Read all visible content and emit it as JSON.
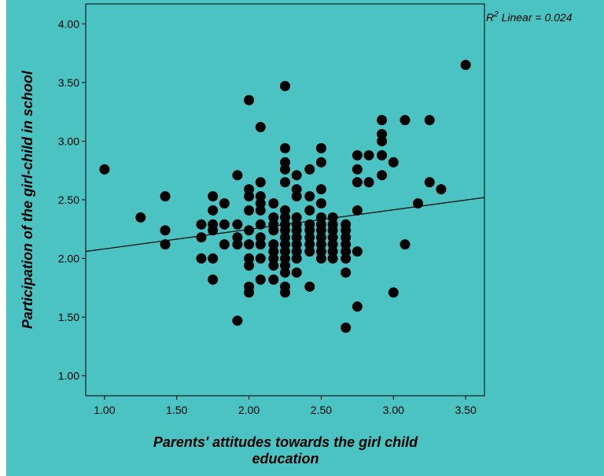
{
  "colors": {
    "background": "#4bc3c3",
    "point": "#000000",
    "line": "#000000"
  },
  "chart_data": {
    "type": "scatter",
    "title": "",
    "xlabel_line1": "Parents' attitudes towards the girl child",
    "xlabel_line2": "education",
    "ylabel": "Participation of the girl-child in school",
    "xlim": [
      0.87,
      3.63
    ],
    "ylim": [
      0.83,
      4.17
    ],
    "x_ticks": [
      "1.00",
      "1.50",
      "2.00",
      "2.50",
      "3.00",
      "3.50"
    ],
    "y_ticks": [
      "1.00",
      "1.50",
      "2.00",
      "2.50",
      "3.00",
      "3.50",
      "4.00"
    ],
    "grid": false,
    "fit_line": {
      "type": "linear",
      "x": [
        0.87,
        3.63
      ],
      "y": [
        2.06,
        2.52
      ]
    },
    "r2_prefix": "R",
    "r2_exponent": "2",
    "r2_text": " Linear = 0.024",
    "points": [
      [
        1.0,
        2.76
      ],
      [
        1.25,
        2.35
      ],
      [
        1.42,
        2.53
      ],
      [
        1.42,
        2.24
      ],
      [
        1.42,
        2.12
      ],
      [
        1.92,
        1.47
      ],
      [
        2.0,
        3.35
      ],
      [
        2.08,
        3.12
      ],
      [
        2.25,
        3.47
      ],
      [
        3.5,
        3.65
      ],
      [
        2.92,
        3.18
      ],
      [
        2.92,
        3.06
      ],
      [
        2.92,
        3.0
      ],
      [
        3.08,
        3.18
      ],
      [
        3.25,
        3.18
      ],
      [
        2.92,
        2.88
      ],
      [
        2.83,
        2.88
      ],
      [
        2.75,
        2.88
      ],
      [
        2.75,
        2.76
      ],
      [
        3.0,
        2.82
      ],
      [
        2.92,
        2.71
      ],
      [
        2.83,
        2.65
      ],
      [
        2.75,
        2.65
      ],
      [
        3.25,
        2.65
      ],
      [
        3.33,
        2.59
      ],
      [
        3.17,
        2.47
      ],
      [
        3.08,
        2.12
      ],
      [
        3.0,
        1.71
      ],
      [
        2.75,
        1.59
      ],
      [
        2.67,
        1.41
      ],
      [
        2.67,
        1.88
      ],
      [
        2.75,
        2.06
      ],
      [
        2.75,
        2.41
      ],
      [
        2.5,
        2.94
      ],
      [
        2.5,
        2.82
      ],
      [
        2.42,
        2.76
      ],
      [
        2.33,
        2.71
      ],
      [
        2.25,
        2.94
      ],
      [
        2.25,
        2.82
      ],
      [
        2.25,
        2.76
      ],
      [
        2.25,
        2.65
      ],
      [
        2.33,
        2.59
      ],
      [
        2.33,
        2.53
      ],
      [
        2.42,
        2.53
      ],
      [
        2.42,
        2.41
      ],
      [
        2.5,
        2.59
      ],
      [
        2.5,
        2.47
      ],
      [
        1.92,
        2.71
      ],
      [
        2.0,
        2.59
      ],
      [
        2.0,
        2.53
      ],
      [
        2.08,
        2.65
      ],
      [
        2.08,
        2.53
      ],
      [
        1.75,
        2.53
      ],
      [
        1.75,
        2.41
      ],
      [
        1.75,
        2.29
      ],
      [
        1.75,
        2.24
      ],
      [
        1.67,
        2.29
      ],
      [
        1.67,
        2.18
      ],
      [
        1.67,
        2.0
      ],
      [
        1.75,
        2.0
      ],
      [
        1.75,
        1.82
      ],
      [
        1.83,
        2.47
      ],
      [
        1.83,
        2.29
      ],
      [
        1.83,
        2.12
      ],
      [
        1.92,
        2.29
      ],
      [
        1.92,
        2.18
      ],
      [
        1.92,
        2.12
      ],
      [
        2.0,
        2.41
      ],
      [
        2.0,
        2.24
      ],
      [
        2.0,
        2.12
      ],
      [
        2.0,
        2.0
      ],
      [
        2.0,
        1.94
      ],
      [
        2.0,
        1.76
      ],
      [
        2.0,
        1.71
      ],
      [
        2.08,
        2.47
      ],
      [
        2.08,
        2.41
      ],
      [
        2.08,
        2.29
      ],
      [
        2.08,
        2.18
      ],
      [
        2.08,
        2.12
      ],
      [
        2.08,
        2.0
      ],
      [
        2.08,
        1.82
      ],
      [
        2.17,
        2.47
      ],
      [
        2.17,
        2.35
      ],
      [
        2.17,
        2.29
      ],
      [
        2.17,
        2.24
      ],
      [
        2.17,
        2.12
      ],
      [
        2.17,
        2.06
      ],
      [
        2.17,
        2.0
      ],
      [
        2.17,
        1.94
      ],
      [
        2.17,
        1.82
      ],
      [
        2.25,
        2.41
      ],
      [
        2.25,
        2.35
      ],
      [
        2.25,
        2.29
      ],
      [
        2.25,
        2.24
      ],
      [
        2.25,
        2.18
      ],
      [
        2.25,
        2.12
      ],
      [
        2.25,
        2.06
      ],
      [
        2.25,
        2.0
      ],
      [
        2.25,
        1.94
      ],
      [
        2.25,
        1.88
      ],
      [
        2.25,
        1.76
      ],
      [
        2.25,
        1.71
      ],
      [
        2.33,
        2.35
      ],
      [
        2.33,
        2.29
      ],
      [
        2.33,
        2.24
      ],
      [
        2.33,
        2.18
      ],
      [
        2.33,
        2.12
      ],
      [
        2.33,
        2.06
      ],
      [
        2.33,
        2.0
      ],
      [
        2.33,
        1.88
      ],
      [
        2.42,
        2.29
      ],
      [
        2.42,
        2.24
      ],
      [
        2.42,
        2.18
      ],
      [
        2.42,
        2.12
      ],
      [
        2.42,
        2.06
      ],
      [
        2.42,
        1.76
      ],
      [
        2.5,
        2.35
      ],
      [
        2.5,
        2.29
      ],
      [
        2.5,
        2.24
      ],
      [
        2.5,
        2.18
      ],
      [
        2.5,
        2.12
      ],
      [
        2.5,
        2.06
      ],
      [
        2.5,
        2.0
      ],
      [
        2.58,
        2.35
      ],
      [
        2.58,
        2.29
      ],
      [
        2.58,
        2.24
      ],
      [
        2.58,
        2.18
      ],
      [
        2.58,
        2.12
      ],
      [
        2.58,
        2.06
      ],
      [
        2.58,
        2.0
      ],
      [
        2.67,
        2.29
      ],
      [
        2.67,
        2.24
      ],
      [
        2.67,
        2.18
      ],
      [
        2.67,
        2.12
      ],
      [
        2.67,
        2.06
      ],
      [
        2.67,
        2.0
      ]
    ]
  }
}
